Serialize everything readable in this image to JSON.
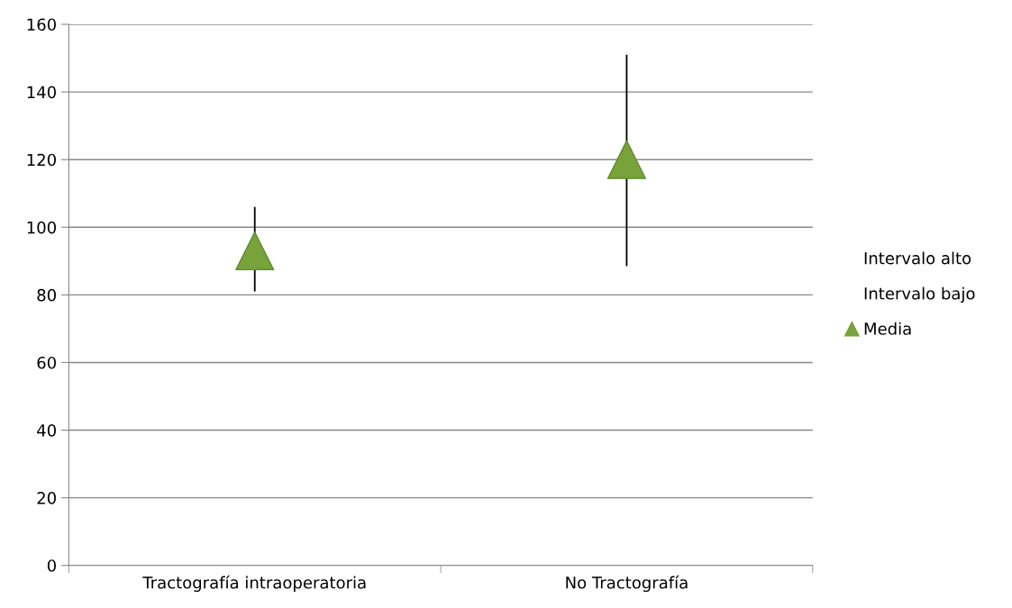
{
  "chart_data": {
    "type": "scatter",
    "categories": [
      "Tractografía intraoperatoria",
      "No Tractografía"
    ],
    "series": [
      {
        "name": "Intervalo alto",
        "values": [
          null,
          null
        ]
      },
      {
        "name": "Intervalo bajo",
        "values": [
          null,
          null
        ]
      },
      {
        "name": "Media",
        "color": "#77a33a",
        "values": [
          93,
          120
        ],
        "errors": [
          [
            81,
            106
          ],
          [
            88.5,
            151
          ]
        ]
      }
    ],
    "marker": "triangle",
    "ylim": [
      0,
      160
    ],
    "yticks": [
      0,
      20,
      40,
      60,
      80,
      100,
      120,
      140,
      160
    ],
    "grid": "y",
    "legend": "right"
  }
}
